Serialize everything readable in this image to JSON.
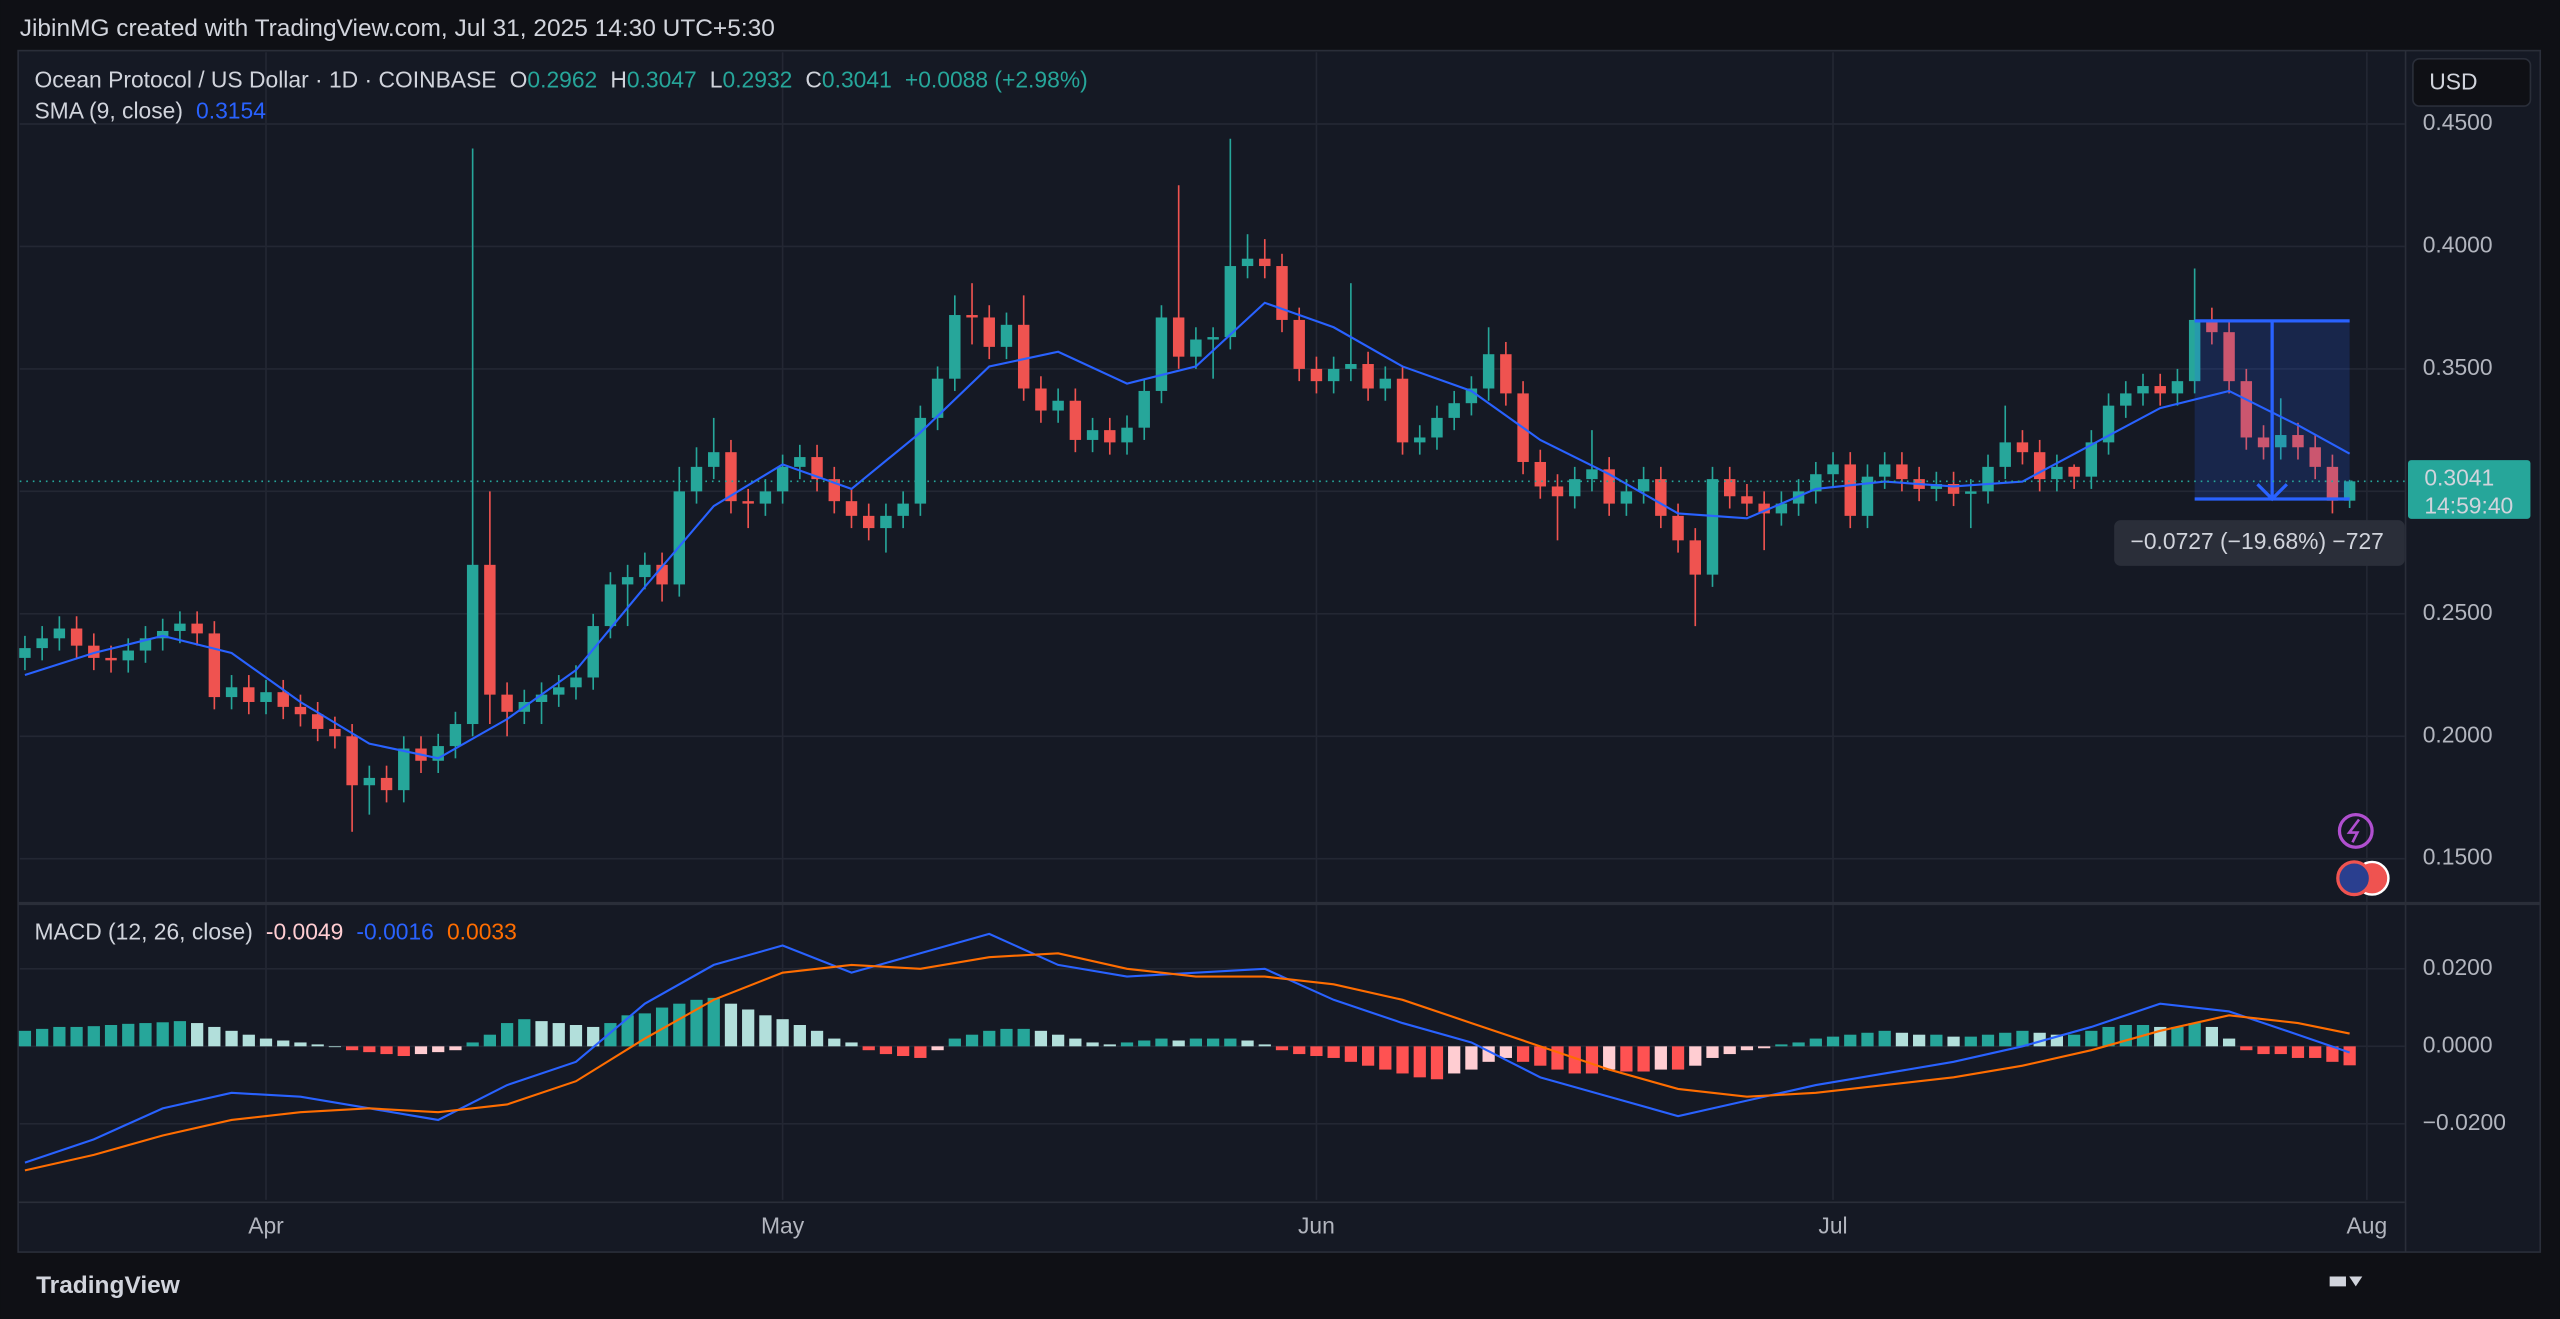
{
  "header": "JibinMG created with TradingView.com, Jul 31, 2025 14:30 UTC+5:30",
  "footer": "TradingView",
  "chart_data": [
    {
      "type": "candlestick",
      "title": "Ocean Protocol / US Dollar · 1D · COINBASE",
      "legend_keys": [
        "O",
        "H",
        "L",
        "C"
      ],
      "change": "+0.0088 (+2.98%)",
      "currency": "USD",
      "countdown": "14:59:40",
      "up_color": "#26a69a",
      "down_color": "#ef5350",
      "xlim": [
        -0.3,
        138.2
      ],
      "ylim": [
        0.1327,
        0.4793
      ],
      "yticks": [
        {
          "value": 0.15,
          "label": "0.1500"
        },
        {
          "value": 0.2,
          "label": "0.2000"
        },
        {
          "value": 0.25,
          "label": "0.2500"
        },
        {
          "value": 0.3,
          "label": "0.3000"
        },
        {
          "value": 0.35,
          "label": "0.3500"
        },
        {
          "value": 0.4,
          "label": "0.4000"
        },
        {
          "value": 0.45,
          "label": "0.4500"
        }
      ],
      "grid": true,
      "open": [
        0.232,
        0.236,
        0.24,
        0.244,
        0.237,
        0.232,
        0.231,
        0.235,
        0.24,
        0.243,
        0.246,
        0.242,
        0.216,
        0.22,
        0.214,
        0.218,
        0.212,
        0.209,
        0.203,
        0.2,
        0.18,
        0.183,
        0.178,
        0.195,
        0.19,
        0.196,
        0.205,
        0.27,
        0.217,
        0.21,
        0.214,
        0.217,
        0.22,
        0.224,
        0.245,
        0.262,
        0.265,
        0.27,
        0.262,
        0.3,
        0.31,
        0.316,
        0.296,
        0.295,
        0.3,
        0.31,
        0.314,
        0.305,
        0.296,
        0.29,
        0.285,
        0.29,
        0.295,
        0.33,
        0.346,
        0.372,
        0.371,
        0.359,
        0.368,
        0.342,
        0.333,
        0.337,
        0.321,
        0.325,
        0.32,
        0.326,
        0.341,
        0.371,
        0.355,
        0.362,
        0.363,
        0.392,
        0.395,
        0.392,
        0.37,
        0.35,
        0.345,
        0.35,
        0.352,
        0.342,
        0.346,
        0.32,
        0.322,
        0.33,
        0.336,
        0.342,
        0.356,
        0.34,
        0.312,
        0.302,
        0.298,
        0.305,
        0.309,
        0.295,
        0.3,
        0.305,
        0.29,
        0.28,
        0.266,
        0.305,
        0.298,
        0.295,
        0.291,
        0.295,
        0.3,
        0.307,
        0.311,
        0.29,
        0.306,
        0.311,
        0.305,
        0.301,
        0.303,
        0.299,
        0.3,
        0.31,
        0.32,
        0.316,
        0.305,
        0.31,
        0.306,
        0.32,
        0.335,
        0.34,
        0.343,
        0.34,
        0.345,
        0.37,
        0.365,
        0.345,
        0.322,
        0.318,
        0.323,
        0.318,
        0.31,
        0.2962
      ],
      "high": [
        0.241,
        0.245,
        0.249,
        0.249,
        0.242,
        0.237,
        0.24,
        0.245,
        0.248,
        0.251,
        0.251,
        0.247,
        0.225,
        0.225,
        0.223,
        0.223,
        0.217,
        0.214,
        0.208,
        0.205,
        0.188,
        0.188,
        0.2,
        0.2,
        0.201,
        0.21,
        0.44,
        0.3,
        0.222,
        0.219,
        0.222,
        0.225,
        0.229,
        0.25,
        0.267,
        0.27,
        0.275,
        0.275,
        0.31,
        0.318,
        0.33,
        0.321,
        0.301,
        0.305,
        0.315,
        0.319,
        0.319,
        0.31,
        0.301,
        0.295,
        0.295,
        0.3,
        0.335,
        0.351,
        0.38,
        0.385,
        0.376,
        0.373,
        0.38,
        0.347,
        0.342,
        0.342,
        0.33,
        0.33,
        0.331,
        0.346,
        0.376,
        0.425,
        0.367,
        0.367,
        0.444,
        0.405,
        0.403,
        0.397,
        0.375,
        0.355,
        0.355,
        0.385,
        0.357,
        0.351,
        0.351,
        0.327,
        0.335,
        0.341,
        0.347,
        0.367,
        0.361,
        0.345,
        0.317,
        0.307,
        0.31,
        0.325,
        0.314,
        0.305,
        0.31,
        0.31,
        0.295,
        0.285,
        0.31,
        0.31,
        0.303,
        0.3,
        0.3,
        0.305,
        0.312,
        0.316,
        0.316,
        0.311,
        0.316,
        0.316,
        0.31,
        0.308,
        0.308,
        0.305,
        0.315,
        0.335,
        0.325,
        0.321,
        0.315,
        0.311,
        0.325,
        0.34,
        0.345,
        0.348,
        0.348,
        0.35,
        0.391,
        0.375,
        0.37,
        0.35,
        0.327,
        0.338,
        0.328,
        0.323,
        0.315,
        0.3047
      ],
      "low": [
        0.227,
        0.231,
        0.235,
        0.232,
        0.227,
        0.226,
        0.226,
        0.23,
        0.235,
        0.238,
        0.237,
        0.211,
        0.211,
        0.209,
        0.209,
        0.207,
        0.204,
        0.198,
        0.195,
        0.161,
        0.168,
        0.173,
        0.173,
        0.185,
        0.185,
        0.191,
        0.2,
        0.205,
        0.2,
        0.205,
        0.205,
        0.212,
        0.215,
        0.219,
        0.24,
        0.245,
        0.26,
        0.255,
        0.257,
        0.295,
        0.305,
        0.291,
        0.285,
        0.29,
        0.295,
        0.305,
        0.3,
        0.291,
        0.285,
        0.28,
        0.275,
        0.285,
        0.29,
        0.325,
        0.341,
        0.36,
        0.354,
        0.354,
        0.337,
        0.328,
        0.328,
        0.316,
        0.316,
        0.315,
        0.315,
        0.321,
        0.336,
        0.35,
        0.35,
        0.346,
        0.358,
        0.387,
        0.387,
        0.365,
        0.345,
        0.34,
        0.34,
        0.345,
        0.337,
        0.337,
        0.315,
        0.315,
        0.317,
        0.325,
        0.331,
        0.337,
        0.335,
        0.307,
        0.297,
        0.28,
        0.293,
        0.3,
        0.29,
        0.29,
        0.295,
        0.285,
        0.275,
        0.245,
        0.261,
        0.293,
        0.29,
        0.276,
        0.286,
        0.29,
        0.295,
        0.302,
        0.285,
        0.285,
        0.301,
        0.3,
        0.296,
        0.296,
        0.294,
        0.285,
        0.295,
        0.305,
        0.311,
        0.3,
        0.3,
        0.301,
        0.301,
        0.315,
        0.33,
        0.335,
        0.335,
        0.335,
        0.34,
        0.36,
        0.34,
        0.317,
        0.313,
        0.313,
        0.313,
        0.305,
        0.291,
        0.2932
      ],
      "close": [
        0.236,
        0.24,
        0.244,
        0.237,
        0.232,
        0.231,
        0.235,
        0.24,
        0.243,
        0.246,
        0.242,
        0.216,
        0.22,
        0.214,
        0.218,
        0.212,
        0.209,
        0.203,
        0.2,
        0.18,
        0.183,
        0.178,
        0.195,
        0.19,
        0.196,
        0.205,
        0.27,
        0.217,
        0.21,
        0.214,
        0.217,
        0.22,
        0.224,
        0.245,
        0.262,
        0.265,
        0.27,
        0.262,
        0.3,
        0.31,
        0.316,
        0.296,
        0.295,
        0.3,
        0.31,
        0.314,
        0.305,
        0.296,
        0.29,
        0.285,
        0.29,
        0.295,
        0.33,
        0.346,
        0.372,
        0.371,
        0.359,
        0.368,
        0.342,
        0.333,
        0.337,
        0.321,
        0.325,
        0.32,
        0.326,
        0.341,
        0.371,
        0.355,
        0.362,
        0.363,
        0.392,
        0.395,
        0.392,
        0.37,
        0.35,
        0.345,
        0.35,
        0.352,
        0.342,
        0.346,
        0.32,
        0.322,
        0.33,
        0.336,
        0.342,
        0.356,
        0.34,
        0.312,
        0.302,
        0.298,
        0.305,
        0.309,
        0.295,
        0.3,
        0.305,
        0.29,
        0.28,
        0.266,
        0.305,
        0.298,
        0.295,
        0.291,
        0.295,
        0.3,
        0.307,
        0.311,
        0.29,
        0.306,
        0.311,
        0.305,
        0.301,
        0.303,
        0.299,
        0.3,
        0.31,
        0.32,
        0.316,
        0.305,
        0.31,
        0.306,
        0.32,
        0.335,
        0.34,
        0.343,
        0.34,
        0.345,
        0.37,
        0.365,
        0.345,
        0.322,
        0.318,
        0.323,
        0.318,
        0.31,
        0.2962,
        0.3041
      ],
      "overlay": {
        "name": "SMA (9, close)",
        "color": "#2962ff",
        "x": [
          0,
          4,
          8,
          12,
          16,
          20,
          24,
          28,
          32,
          36,
          40,
          44,
          48,
          52,
          56,
          60,
          64,
          68,
          72,
          76,
          80,
          84,
          88,
          92,
          96,
          100,
          104,
          108,
          112,
          116,
          120,
          124,
          128,
          132,
          135
        ],
        "values": [
          0.225,
          0.234,
          0.241,
          0.234,
          0.214,
          0.197,
          0.191,
          0.207,
          0.227,
          0.261,
          0.294,
          0.311,
          0.301,
          0.324,
          0.351,
          0.357,
          0.344,
          0.351,
          0.377,
          0.367,
          0.351,
          0.341,
          0.321,
          0.307,
          0.291,
          0.289,
          0.301,
          0.304,
          0.302,
          0.304,
          0.319,
          0.334,
          0.341,
          0.327,
          0.3154
        ]
      },
      "measure": {
        "label": "−0.0727 (−19.68%) −727",
        "color": "#2962ff",
        "x": [
          126,
          135
        ],
        "y": [
          0.3696,
          0.2969
        ]
      }
    },
    {
      "type": "macd",
      "title": "MACD (12, 26, close)",
      "xlim": [
        -0.3,
        138.2
      ],
      "ylim": [
        -0.0396,
        0.0362
      ],
      "yticks": [
        {
          "value": -0.02,
          "label": "−0.0200"
        },
        {
          "value": 0,
          "label": "0.0000"
        },
        {
          "value": 0.02,
          "label": "0.0200"
        }
      ],
      "xticks": [
        {
          "value": 14,
          "label": "Apr"
        },
        {
          "value": 44,
          "label": "May"
        },
        {
          "value": 75,
          "label": "Jun"
        },
        {
          "value": 105,
          "label": "Jul"
        },
        {
          "value": 136,
          "label": "Aug"
        }
      ],
      "grid": true,
      "histogram": {
        "colors": [
          "#26a69a",
          "#b2dfdb",
          "#ff5252",
          "#ffcdd2"
        ],
        "values": [
          0.004,
          0.0045,
          0.005,
          0.005,
          0.0052,
          0.0055,
          0.0058,
          0.006,
          0.0062,
          0.0065,
          0.006,
          0.005,
          0.004,
          0.003,
          0.002,
          0.0015,
          0.001,
          0.0005,
          0.0,
          -0.001,
          -0.0015,
          -0.002,
          -0.0025,
          -0.002,
          -0.0015,
          -0.001,
          0.001,
          0.003,
          0.006,
          0.007,
          0.0065,
          0.006,
          0.0055,
          0.005,
          0.006,
          0.008,
          0.0085,
          0.01,
          0.011,
          0.012,
          0.0125,
          0.011,
          0.0095,
          0.008,
          0.007,
          0.0055,
          0.004,
          0.002,
          0.001,
          -0.001,
          -0.002,
          -0.0025,
          -0.003,
          -0.001,
          0.002,
          0.003,
          0.004,
          0.0045,
          0.0045,
          0.004,
          0.003,
          0.002,
          0.001,
          0.0005,
          0.001,
          0.0015,
          0.002,
          0.0015,
          0.002,
          0.002,
          0.002,
          0.0015,
          0.0005,
          -0.001,
          -0.002,
          -0.0025,
          -0.003,
          -0.004,
          -0.005,
          -0.006,
          -0.007,
          -0.008,
          -0.0085,
          -0.007,
          -0.006,
          -0.004,
          -0.003,
          -0.004,
          -0.005,
          -0.006,
          -0.007,
          -0.007,
          -0.006,
          -0.0065,
          -0.0065,
          -0.006,
          -0.006,
          -0.005,
          -0.003,
          -0.002,
          -0.001,
          -0.0005,
          0.0005,
          0.001,
          0.002,
          0.0025,
          0.003,
          0.0035,
          0.004,
          0.0035,
          0.003,
          0.003,
          0.0025,
          0.0025,
          0.003,
          0.0035,
          0.004,
          0.0035,
          0.003,
          0.003,
          0.004,
          0.005,
          0.0055,
          0.0055,
          0.005,
          0.005,
          0.006,
          0.005,
          0.002,
          -0.001,
          -0.002,
          -0.002,
          -0.003,
          -0.003,
          -0.004,
          -0.0049
        ]
      },
      "x": [
        0,
        4,
        8,
        12,
        16,
        20,
        24,
        28,
        32,
        36,
        40,
        44,
        48,
        52,
        56,
        60,
        64,
        68,
        72,
        76,
        80,
        84,
        88,
        92,
        96,
        100,
        104,
        108,
        112,
        116,
        120,
        124,
        128,
        132,
        135
      ],
      "series": [
        {
          "color": "#2962ff",
          "values": [
            -0.03,
            -0.024,
            -0.016,
            -0.012,
            -0.013,
            -0.016,
            -0.019,
            -0.01,
            -0.004,
            0.011,
            0.021,
            0.026,
            0.019,
            0.024,
            0.029,
            0.021,
            0.018,
            0.019,
            0.02,
            0.012,
            0.006,
            0.001,
            -0.008,
            -0.013,
            -0.018,
            -0.014,
            -0.01,
            -0.007,
            -0.004,
            0.0,
            0.005,
            0.011,
            0.009,
            0.003,
            -0.0016
          ]
        },
        {
          "color": "#ff6d00",
          "values": [
            -0.032,
            -0.028,
            -0.023,
            -0.019,
            -0.017,
            -0.016,
            -0.017,
            -0.015,
            -0.009,
            0.002,
            0.012,
            0.019,
            0.021,
            0.02,
            0.023,
            0.024,
            0.02,
            0.018,
            0.018,
            0.016,
            0.012,
            0.006,
            0.0,
            -0.006,
            -0.011,
            -0.013,
            -0.012,
            -0.01,
            -0.008,
            -0.005,
            -0.001,
            0.004,
            0.008,
            0.006,
            0.0033
          ]
        }
      ]
    }
  ]
}
